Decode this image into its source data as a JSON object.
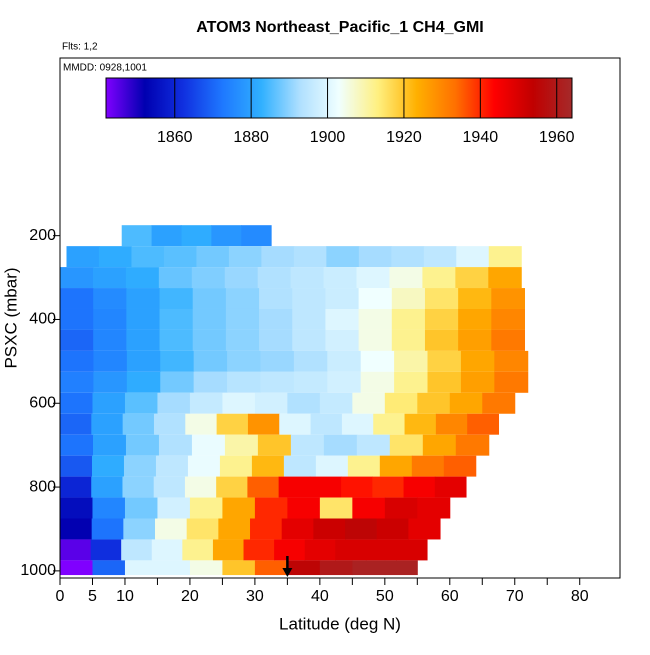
{
  "chart_data": {
    "type": "heatmap",
    "title": "ATOM3 Northeast_Pacific_1 CH4_GMI",
    "annotations": [
      "Flts: 1,2",
      "MMDD: 0928,1001"
    ],
    "x_label": "Latitude (deg N)",
    "y_label": "PSXC (mbar)",
    "xlim": [
      0,
      86.2
    ],
    "xticks": [
      0,
      5,
      10,
      20,
      30,
      40,
      50,
      60,
      70,
      80
    ],
    "xticks_minor": [
      15,
      25,
      35,
      45,
      55,
      65,
      75
    ],
    "ylim": [
      1017,
      -224
    ],
    "yticks": [
      200,
      400,
      600,
      800,
      1000
    ],
    "clim": [
      1842,
      1964
    ],
    "cticks": [
      1860,
      1880,
      1900,
      1920,
      1940,
      1960
    ],
    "colormap": [
      "#8000ff",
      "#0000b0",
      "#1030e0",
      "#1e78ff",
      "#30b0ff",
      "#b0e0ff",
      "#f0ffff",
      "#fff080",
      "#ffb000",
      "#ff7000",
      "#ff0000",
      "#c00000",
      "#a52a2a"
    ],
    "arrow_x": 35,
    "rows": [
      {
        "p": [
          175,
          225
        ],
        "lat": [
          9.5,
          32.5
        ],
        "values": [
          1885,
          1880,
          1882,
          1878,
          1876
        ]
      },
      {
        "p": [
          225,
          275
        ],
        "lat": [
          1,
          71
        ],
        "values": [
          1880,
          1882,
          1885,
          1886,
          1888,
          1890,
          1892,
          1893,
          1890,
          1892,
          1893,
          1895,
          1900,
          1912
        ]
      },
      {
        "p": [
          275,
          325
        ],
        "lat": [
          0,
          71
        ],
        "values": [
          1878,
          1880,
          1882,
          1887,
          1889,
          1891,
          1893,
          1895,
          1897,
          1900,
          1905,
          1912,
          1918,
          1925
        ]
      },
      {
        "p": [
          325,
          375
        ],
        "lat": [
          0,
          71.5
        ],
        "values": [
          1872,
          1876,
          1880,
          1884,
          1888,
          1890,
          1893,
          1895,
          1897,
          1903,
          1908,
          1915,
          1922,
          1928
        ]
      },
      {
        "p": [
          375,
          425
        ],
        "lat": [
          0,
          71.5
        ],
        "values": [
          1872,
          1875,
          1880,
          1885,
          1888,
          1890,
          1892,
          1895,
          1900,
          1905,
          1912,
          1918,
          1925,
          1930
        ]
      },
      {
        "p": [
          425,
          475
        ],
        "lat": [
          0,
          71.5
        ],
        "values": [
          1870,
          1875,
          1880,
          1885,
          1888,
          1890,
          1892,
          1895,
          1898,
          1905,
          1912,
          1920,
          1926,
          1932
        ]
      },
      {
        "p": [
          475,
          525
        ],
        "lat": [
          0,
          72
        ],
        "values": [
          1872,
          1875,
          1880,
          1884,
          1888,
          1890,
          1891,
          1893,
          1897,
          1903,
          1910,
          1918,
          1925,
          1930
        ]
      },
      {
        "p": [
          525,
          575
        ],
        "lat": [
          0,
          72
        ],
        "values": [
          1874,
          1878,
          1882,
          1888,
          1892,
          1894,
          1895,
          1896,
          1898,
          1905,
          1912,
          1920,
          1926,
          1932
        ]
      },
      {
        "p": [
          575,
          625
        ],
        "lat": [
          0,
          70
        ],
        "values": [
          1872,
          1880,
          1886,
          1892,
          1896,
          1900,
          1898,
          1893,
          1896,
          1905,
          1914,
          1920,
          1925,
          1932
        ]
      },
      {
        "p": [
          625,
          675
        ],
        "lat": [
          0,
          67.5
        ],
        "values": [
          1870,
          1880,
          1888,
          1893,
          1905,
          1918,
          1928,
          1900,
          1895,
          1900,
          1912,
          1922,
          1930,
          1935
        ]
      },
      {
        "p": [
          675,
          725
        ],
        "lat": [
          0,
          66
        ],
        "values": [
          1872,
          1880,
          1888,
          1893,
          1902,
          1910,
          1920,
          1895,
          1892,
          1895,
          1915,
          1925,
          1932
        ]
      },
      {
        "p": [
          725,
          775
        ],
        "lat": [
          0,
          64
        ],
        "values": [
          1868,
          1882,
          1890,
          1895,
          1902,
          1912,
          1922,
          1895,
          1900,
          1912,
          1925,
          1932,
          1935
        ]
      },
      {
        "p": [
          775,
          825
        ],
        "lat": [
          0,
          62.5
        ],
        "values": [
          1860,
          1880,
          1890,
          1895,
          1905,
          1918,
          1935,
          1945,
          1945,
          1942,
          1940,
          1945,
          1948
        ]
      },
      {
        "p": [
          825,
          875
        ],
        "lat": [
          0,
          60
        ],
        "values": [
          1855,
          1875,
          1888,
          1898,
          1912,
          1925,
          1940,
          1945,
          1915,
          1945,
          1950,
          1948
        ]
      },
      {
        "p": [
          875,
          925
        ],
        "lat": [
          0,
          58.5
        ],
        "values": [
          1852,
          1872,
          1890,
          1905,
          1915,
          1925,
          1940,
          1948,
          1952,
          1955,
          1952,
          1948
        ]
      },
      {
        "p": [
          925,
          975
        ],
        "lat": [
          0,
          56.5
        ],
        "values": [
          1845,
          1862,
          1895,
          1900,
          1912,
          1925,
          1940,
          1945,
          1948,
          1950,
          1950,
          1950
        ]
      },
      {
        "p": [
          975,
          1010
        ],
        "lat": [
          0,
          55
        ],
        "values": [
          1842,
          1870,
          1900,
          1900,
          1905,
          1920,
          1935,
          1955,
          1960,
          1962,
          1962
        ]
      }
    ]
  }
}
